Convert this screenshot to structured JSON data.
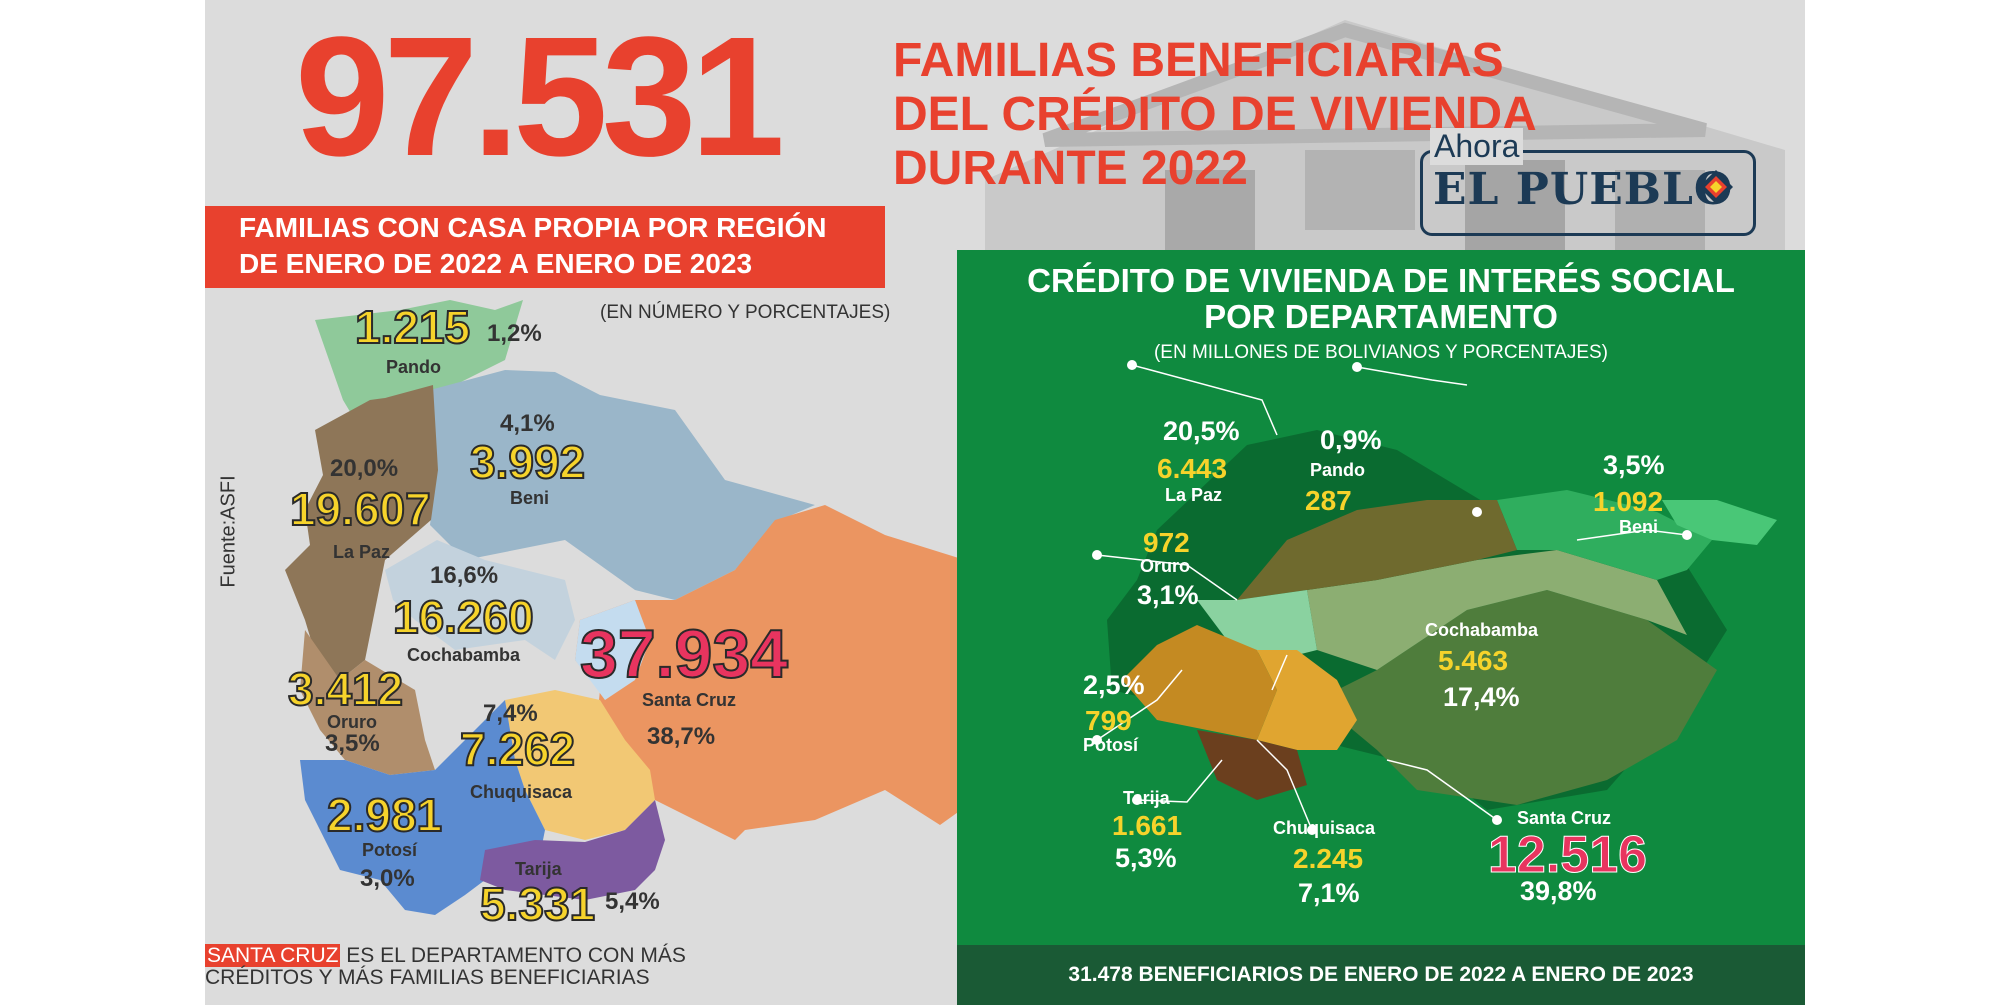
{
  "header": {
    "big_number": "97.531",
    "line1": "FAMILIAS BENEFICIARIAS",
    "line2": "DEL CRÉDITO DE VIVIENDA",
    "line3": "DURANTE 2022"
  },
  "logo": {
    "ahora": "Ahora",
    "name": "EL PUEBLO"
  },
  "left_panel": {
    "title_line1": "FAMILIAS CON CASA PROPIA POR REGIÓN",
    "title_line2": "DE ENERO DE 2022 A ENERO DE 2023",
    "note": "(EN NÚMERO Y PORCENTAJES)",
    "source": "Fuente:ASFI",
    "departments": {
      "pando": {
        "name": "Pando",
        "value": "1.215",
        "pct": "1,2%"
      },
      "beni": {
        "name": "Beni",
        "value": "3.992",
        "pct": "4,1%"
      },
      "la_paz": {
        "name": "La Paz",
        "value": "19.607",
        "pct": "20,0%"
      },
      "cochabamba": {
        "name": "Cochabamba",
        "value": "16.260",
        "pct": "16,6%"
      },
      "santa_cruz": {
        "name": "Santa Cruz",
        "value": "37.934",
        "pct": "38,7%"
      },
      "oruro": {
        "name": "Oruro",
        "value": "3.412",
        "pct": "3,5%"
      },
      "chuquisaca": {
        "name": "Chuquisaca",
        "value": "7.262",
        "pct": "7,4%"
      },
      "potosi": {
        "name": "Potosí",
        "value": "2.981",
        "pct": "3,0%"
      },
      "tarija": {
        "name": "Tarija",
        "value": "5.331",
        "pct": "5,4%"
      }
    },
    "footer_highlight": "SANTA CRUZ",
    "footer_line1": " ES EL DEPARTAMENTO CON MÁS",
    "footer_line2": "CRÉDITOS Y MÁS FAMILIAS BENEFICIARIAS"
  },
  "right_panel": {
    "title_line1": "CRÉDITO DE VIVIENDA DE INTERÉS SOCIAL",
    "title_line2": "POR DEPARTAMENTO",
    "note": "(EN MILLONES DE BOLIVIANOS Y PORCENTAJES)",
    "departments": {
      "la_paz": {
        "name": "La Paz",
        "value": "6.443",
        "pct": "20,5%"
      },
      "pando": {
        "name": "Pando",
        "value": "287",
        "pct": "0,9%"
      },
      "beni": {
        "name": "Beni",
        "value": "1.092",
        "pct": "3,5%"
      },
      "oruro": {
        "name": "Oruro",
        "value": "972",
        "pct": "3,1%"
      },
      "cochabamba": {
        "name": "Cochabamba",
        "value": "5.463",
        "pct": "17,4%"
      },
      "potosi": {
        "name": "Potosí",
        "value": "799",
        "pct": "2,5%"
      },
      "tarija": {
        "name": "Tarija",
        "value": "1.661",
        "pct": "5,3%"
      },
      "chuquisaca": {
        "name": "Chuquisaca",
        "value": "2.245",
        "pct": "7,1%"
      },
      "santa_cruz": {
        "name": "Santa Cruz",
        "value": "12.516",
        "pct": "39,8%"
      }
    },
    "footer": "31.478 BENEFICIARIOS DE ENERO DE 2022 A ENERO DE 2023"
  },
  "colors": {
    "red": "#e8412e",
    "green": "#0f8a3f",
    "dark_green": "#1a5a35",
    "yellow": "#f6d32b",
    "pink": "#e8345f",
    "navy": "#1c3a55"
  }
}
